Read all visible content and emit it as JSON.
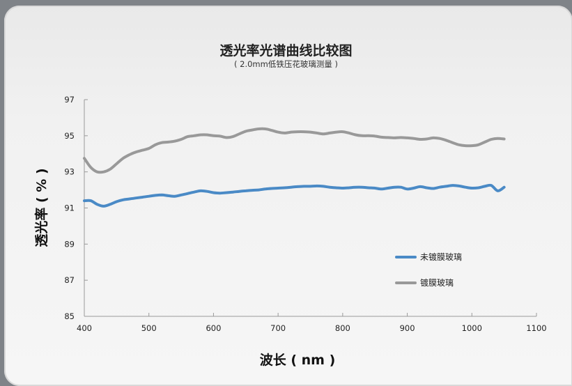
{
  "chart_data": {
    "type": "line",
    "title": "透光率光谱曲线比较图",
    "subtitle": "( 2.0mm低铁压花玻璃测量 )",
    "xlabel": "波长 ( nm )",
    "ylabel": "透光率 ( % )",
    "xlim": [
      400,
      1100
    ],
    "ylim": [
      85,
      97
    ],
    "xticks": [
      400,
      500,
      600,
      700,
      800,
      900,
      1000,
      1100
    ],
    "yticks": [
      85,
      87,
      89,
      91,
      93,
      95,
      97
    ],
    "grid": false,
    "legend_position": "right",
    "x": [
      400,
      410,
      420,
      430,
      440,
      450,
      460,
      470,
      480,
      490,
      500,
      510,
      520,
      530,
      540,
      550,
      560,
      570,
      580,
      590,
      600,
      610,
      620,
      630,
      640,
      650,
      660,
      670,
      680,
      690,
      700,
      710,
      720,
      730,
      740,
      750,
      760,
      770,
      780,
      790,
      800,
      810,
      820,
      830,
      840,
      850,
      860,
      870,
      880,
      890,
      900,
      910,
      920,
      930,
      940,
      950,
      960,
      970,
      980,
      990,
      1000,
      1010,
      1020,
      1030,
      1040,
      1050
    ],
    "series": [
      {
        "name": "未镀膜玻璃",
        "color": "#4a8ac6",
        "values": [
          91.4,
          91.4,
          91.2,
          91.1,
          91.2,
          91.35,
          91.45,
          91.5,
          91.55,
          91.6,
          91.65,
          91.7,
          91.72,
          91.68,
          91.65,
          91.72,
          91.8,
          91.88,
          91.95,
          91.92,
          91.85,
          91.82,
          91.85,
          91.88,
          91.92,
          91.95,
          91.98,
          92.0,
          92.05,
          92.08,
          92.1,
          92.12,
          92.15,
          92.18,
          92.2,
          92.2,
          92.22,
          92.2,
          92.15,
          92.12,
          92.1,
          92.12,
          92.15,
          92.15,
          92.12,
          92.1,
          92.05,
          92.1,
          92.15,
          92.15,
          92.05,
          92.1,
          92.18,
          92.12,
          92.08,
          92.15,
          92.2,
          92.25,
          92.22,
          92.15,
          92.1,
          92.12,
          92.2,
          92.25,
          91.95,
          92.15
        ]
      },
      {
        "name": "镀膜玻璃",
        "color": "#999999",
        "values": [
          93.75,
          93.25,
          93.0,
          93.0,
          93.15,
          93.45,
          93.75,
          93.95,
          94.1,
          94.2,
          94.3,
          94.5,
          94.62,
          94.65,
          94.7,
          94.8,
          94.95,
          95.0,
          95.05,
          95.05,
          95.0,
          94.98,
          94.9,
          94.95,
          95.1,
          95.25,
          95.32,
          95.38,
          95.38,
          95.3,
          95.2,
          95.15,
          95.2,
          95.22,
          95.22,
          95.2,
          95.15,
          95.1,
          95.15,
          95.2,
          95.22,
          95.15,
          95.05,
          95.0,
          95.0,
          94.98,
          94.92,
          94.9,
          94.88,
          94.9,
          94.88,
          94.85,
          94.8,
          94.82,
          94.88,
          94.85,
          94.75,
          94.62,
          94.5,
          94.45,
          94.45,
          94.5,
          94.65,
          94.8,
          94.85,
          94.82
        ]
      }
    ]
  }
}
